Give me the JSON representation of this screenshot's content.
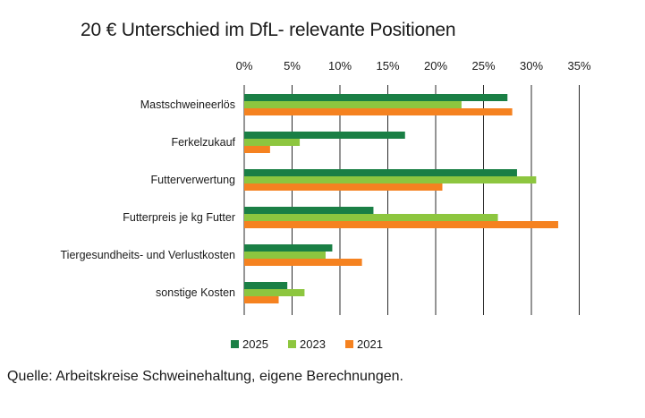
{
  "title": "20 € Unterschied im DfL- relevante Positionen",
  "source": "Quelle: Arbeitskreise Schweinehaltung, eigene Berechnungen.",
  "chart_data": {
    "type": "bar",
    "orientation": "horizontal",
    "title": "20 € Unterschied im DfL- relevante Positionen",
    "xlabel": "",
    "ylabel": "",
    "xlim": [
      0,
      35
    ],
    "x_ticks": [
      "0%",
      "5%",
      "10%",
      "15%",
      "20%",
      "25%",
      "30%",
      "35%"
    ],
    "grid": "vertical",
    "legend_position": "bottom",
    "categories": [
      "Mastschweineerlös",
      "Ferkelzukauf",
      "Futterverwertung",
      "Futterpreis je kg Futter",
      "Tiergesundheits- und Verlustkosten",
      "sonstige Kosten"
    ],
    "series": [
      {
        "name": "2025",
        "color": "#1a7f45",
        "values": [
          27.5,
          16.8,
          28.5,
          13.5,
          9.2,
          4.5
        ]
      },
      {
        "name": "2023",
        "color": "#8dc63f",
        "values": [
          22.7,
          5.8,
          30.5,
          26.5,
          8.5,
          6.3
        ]
      },
      {
        "name": "2021",
        "color": "#f58220",
        "values": [
          28.0,
          2.7,
          20.7,
          32.8,
          12.3,
          3.6
        ]
      }
    ]
  }
}
